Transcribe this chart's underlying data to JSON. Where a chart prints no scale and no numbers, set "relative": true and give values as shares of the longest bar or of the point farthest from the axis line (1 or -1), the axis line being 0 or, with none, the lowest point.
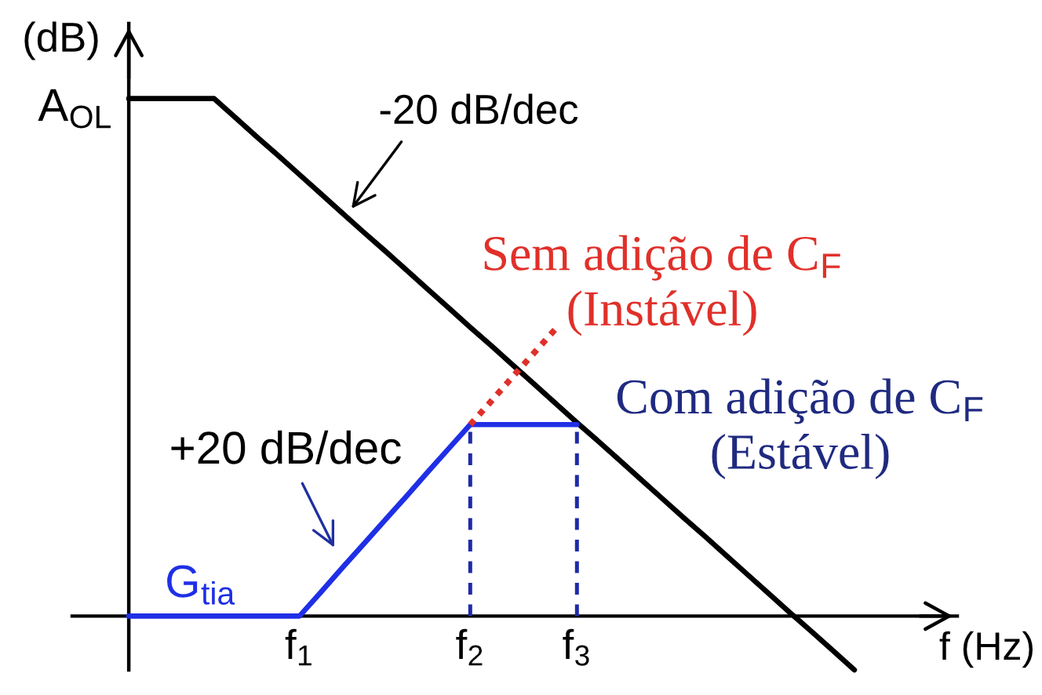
{
  "chart_data": {
    "type": "line",
    "relative": true,
    "xlabel": "f (Hz)",
    "ylabel": "(dB)",
    "tick_labels": "x",
    "categories": [
      null,
      null,
      null,
      null,
      null,
      null,
      null,
      null,
      "f$_{1}$",
      null,
      null,
      null,
      null,
      null,
      null,
      null,
      "f$_{2}$",
      null,
      null,
      null,
      null,
      "f$_{3}$",
      null,
      null,
      null,
      null,
      null,
      null,
      null,
      null,
      null,
      null,
      null,
      null,
      null
    ],
    "series": [
      {
        "color": "#000000",
        "values": [
          1,
          1,
          1,
          1,
          1,
          0.963,
          0.926,
          0.89,
          0.853,
          0.816,
          0.779,
          0.742,
          0.706,
          0.669,
          0.632,
          0.595,
          0.558,
          0.522,
          0.485,
          0.448,
          0.411,
          0.374,
          0.338,
          0.301,
          0.264,
          0.227,
          0.19,
          0.154,
          0.117,
          0.08,
          0.043,
          0.006,
          -0.03,
          -0.067,
          -0.104
        ]
      },
      {
        "name": "G$_{tia}$",
        "color": "#1f2fe6",
        "values": [
          0,
          0,
          0,
          0,
          0,
          0,
          0,
          0,
          0,
          0.046,
          0.093,
          0.139,
          0.185,
          0.231,
          0.278,
          0.324,
          0.37,
          0.37,
          0.37,
          0.37,
          0.37,
          0.37,
          null,
          null,
          null,
          null,
          null,
          null,
          null,
          null,
          null,
          null,
          null,
          null,
          null
        ]
      },
      {
        "name": "Sem adição de C$_{F}$\n(Instável)",
        "color": "#e0302a",
        "line_style": "dotted",
        "values": [
          null,
          null,
          null,
          null,
          null,
          null,
          null,
          null,
          null,
          null,
          null,
          null,
          null,
          null,
          null,
          null,
          0.37,
          0.416,
          0.463,
          0.509,
          0.555,
          null,
          null,
          null,
          null,
          null,
          null,
          null,
          null,
          null,
          null,
          null,
          null,
          null,
          null
        ]
      }
    ],
    "ref_lines": [
      {
        "axis": "x",
        "value": "f$_{2}$",
        "color": "#1f2aa8",
        "line_style": "dashed"
      },
      {
        "axis": "x",
        "value": "f$_{3}$",
        "color": "#1f2aa8",
        "line_style": "dashed"
      }
    ],
    "annotations": [
      "A$_{OL}$",
      "-20 dB/dec",
      "+20 dB/dec",
      "Com adição de C$_{F}$\n(Estável)"
    ]
  }
}
